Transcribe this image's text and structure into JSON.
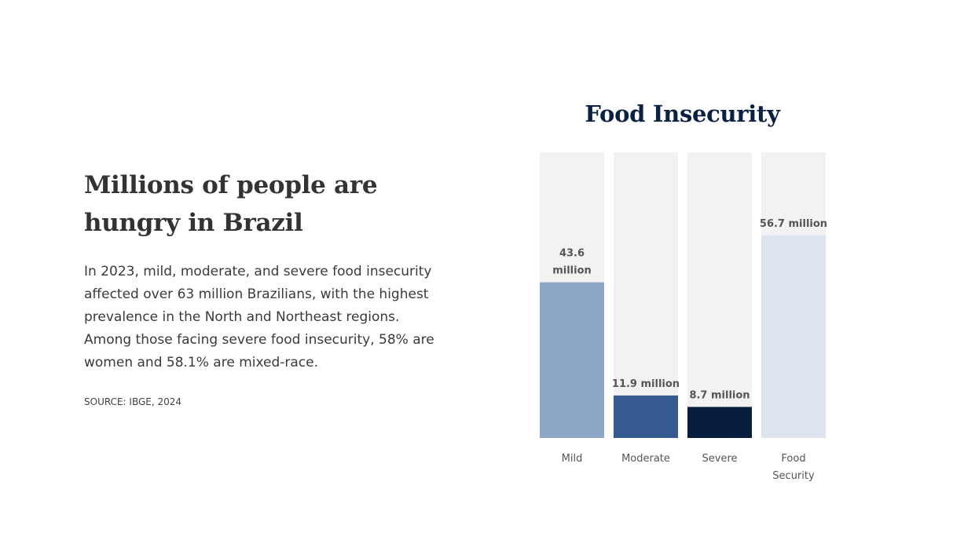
{
  "headline": "Millions of people are hungry in Brazil",
  "body": "In 2023, mild, moderate, and severe food insecurity affected over 63 million Brazilians, with the highest prevalence in the North and Northeast regions. Among those facing severe food insecurity, 58% are women and 58.1% are mixed-race.",
  "source": "SOURCE: IBGE, 2024",
  "chart_data": {
    "type": "bar",
    "title": "Food Insecurity",
    "categories": [
      "Mild",
      "Moderate",
      "Severe",
      "Food Security"
    ],
    "values": [
      43.6,
      11.9,
      8.7,
      56.7
    ],
    "value_labels": [
      "43.6 million",
      "11.9 million",
      "8.7 million",
      "56.7 million"
    ],
    "unit": "million",
    "ylim": [
      0,
      80
    ],
    "colors": [
      "#8ea7c6",
      "#345a91",
      "#081e3f",
      "#dde4f0"
    ],
    "track_color": "#f2f2f2",
    "grid": false,
    "legend": "none"
  }
}
